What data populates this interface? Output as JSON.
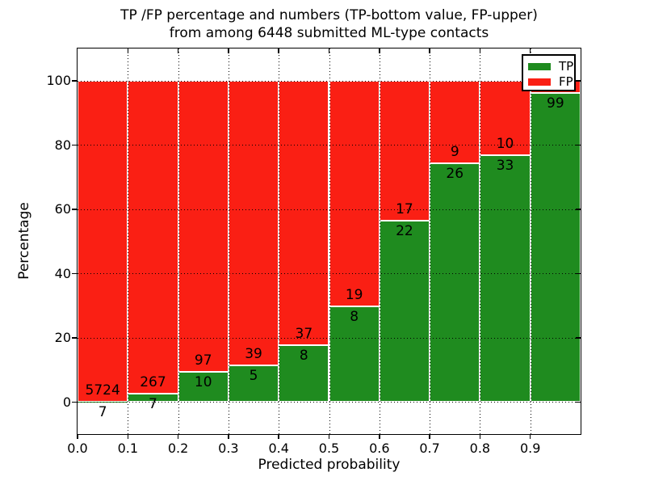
{
  "title": {
    "line1": "TP /FP percentage and numbers (TP-bottom value, FP-upper)",
    "line2": "from among 6448 submitted ML-type contacts"
  },
  "chart_data": {
    "type": "bar",
    "stacked": true,
    "title": "TP /FP percentage and numbers (TP-bottom value, FP-upper) from among 6448 submitted ML-type contacts",
    "total_submitted_contacts": 6448,
    "xlabel": "Predicted probability",
    "ylabel": "Percentage",
    "ylim": [
      -10,
      110
    ],
    "xlim": [
      0,
      1
    ],
    "grid": true,
    "yticks": [
      0,
      20,
      40,
      60,
      80,
      100
    ],
    "xticks": [
      "0.0",
      "0.1",
      "0.2",
      "0.3",
      "0.4",
      "0.5",
      "0.6",
      "0.7",
      "0.8",
      "0.9"
    ],
    "colors": {
      "tp": "#1f8b1f",
      "fp": "#fa1f14",
      "bar_edge": "#ffffff"
    },
    "legend": {
      "position": "upper right",
      "entries": [
        {
          "label": "TP",
          "color": "#1f8b1f"
        },
        {
          "label": "FP",
          "color": "#fa1f14"
        }
      ]
    },
    "bins": [
      {
        "range": "0.0-0.1",
        "tp_count": 7,
        "fp_count": 5724,
        "tp_pct": 0.12,
        "fp_label_visible": true
      },
      {
        "range": "0.1-0.2",
        "tp_count": 7,
        "fp_count": 267,
        "tp_pct": 2.55,
        "fp_label_visible": true
      },
      {
        "range": "0.2-0.3",
        "tp_count": 10,
        "fp_count": 97,
        "tp_pct": 9.35,
        "fp_label_visible": true
      },
      {
        "range": "0.3-0.4",
        "tp_count": 5,
        "fp_count": 39,
        "tp_pct": 11.36,
        "fp_label_visible": true
      },
      {
        "range": "0.4-0.5",
        "tp_count": 8,
        "fp_count": 37,
        "tp_pct": 17.78,
        "fp_label_visible": true
      },
      {
        "range": "0.5-0.6",
        "tp_count": 8,
        "fp_count": 19,
        "tp_pct": 29.63,
        "fp_label_visible": true
      },
      {
        "range": "0.6-0.7",
        "tp_count": 22,
        "fp_count": 17,
        "tp_pct": 56.41,
        "fp_label_visible": true
      },
      {
        "range": "0.7-0.8",
        "tp_count": 26,
        "fp_count": 9,
        "tp_pct": 74.29,
        "fp_label_visible": true
      },
      {
        "range": "0.8-0.9",
        "tp_count": 33,
        "fp_count": 10,
        "tp_pct": 76.74,
        "fp_label_visible": true
      },
      {
        "range": "0.9-1.0",
        "tp_count": 99,
        "fp_count": null,
        "tp_pct": 96.1,
        "fp_label_visible": false
      }
    ]
  }
}
